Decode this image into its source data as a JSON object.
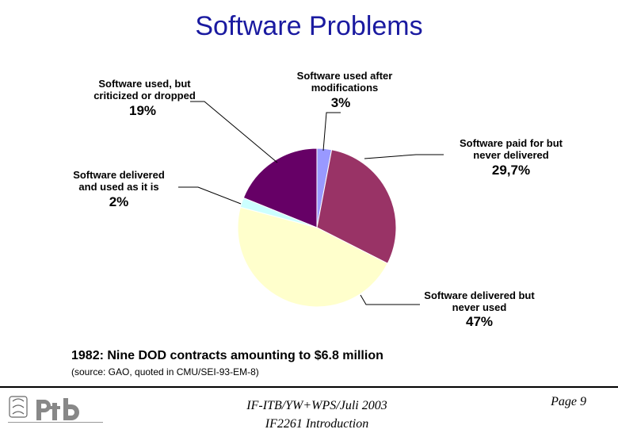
{
  "title": "Software Problems",
  "chart_data": {
    "type": "pie",
    "slices": [
      {
        "label": "Software used after modifications",
        "value": 3,
        "display": "3%",
        "color": "#9999ff"
      },
      {
        "label": "Software paid for but never delivered",
        "value": 29.7,
        "display": "29,7%",
        "color": "#993366"
      },
      {
        "label": "Software delivered but never used",
        "value": 47,
        "display": "47%",
        "color": "#ffffcc"
      },
      {
        "label": "Software delivered and used as it is",
        "value": 2,
        "display": "2%",
        "color": "#ccffff"
      },
      {
        "label": "Software used, but criticized or dropped",
        "value": 19,
        "display": "19%",
        "color": "#660066"
      }
    ]
  },
  "labels": {
    "after_mod_line1": "Software used after",
    "after_mod_line2": "modifications",
    "paid_line1": "Software paid for but",
    "paid_line2": "never delivered",
    "never_used_line1": "Software delivered but",
    "never_used_line2": "never used",
    "as_is_line1": "Software delivered",
    "as_is_line2": "and used as it is",
    "criticized_line1": "Software used, but",
    "criticized_line2": "criticized or dropped"
  },
  "caption": {
    "year": "1982:",
    "text": "Nine DOD contracts amounting to $6.8 million",
    "source": "(source: GAO, quoted in CMU/SEI-93-EM-8)"
  },
  "footer": {
    "line1": "IF-ITB/YW+WPS/Juli 2003",
    "line2": "IF2261 Introduction",
    "page": "Page 9"
  }
}
